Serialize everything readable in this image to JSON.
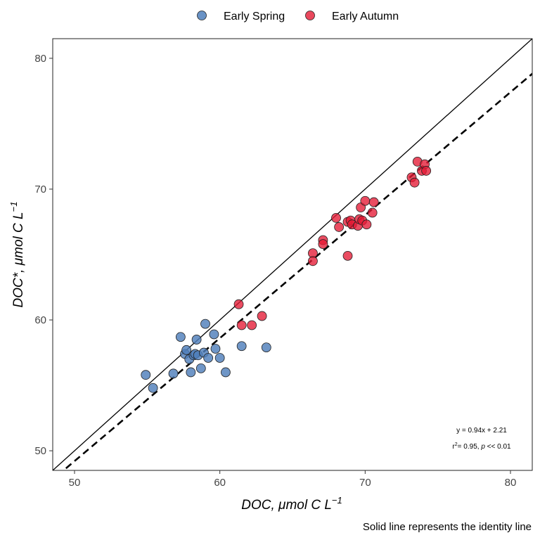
{
  "chart_data": {
    "type": "scatter",
    "xlabel_main": "DOC, μmol C L",
    "xlabel_sup": "−1",
    "ylabel_main": "DOC*, μmol C L",
    "ylabel_sup": "−1",
    "xlim": [
      48.5,
      81.5
    ],
    "ylim": [
      48.5,
      81.5
    ],
    "x_ticks": [
      50,
      60,
      70,
      80
    ],
    "y_ticks": [
      50,
      60,
      70,
      80
    ],
    "x_tick_labels": [
      "50",
      "60",
      "70",
      "80"
    ],
    "y_tick_labels": [
      "50",
      "60",
      "70",
      "80"
    ],
    "grid": false,
    "legend_position": "top",
    "series": [
      {
        "name": "Early Spring",
        "color": "#4f7fbb",
        "points": [
          [
            54.9,
            55.8
          ],
          [
            55.4,
            54.8
          ],
          [
            56.8,
            55.9
          ],
          [
            57.3,
            58.7
          ],
          [
            57.6,
            57.4
          ],
          [
            57.7,
            57.7
          ],
          [
            57.9,
            57.0
          ],
          [
            58.0,
            56.0
          ],
          [
            58.2,
            57.3
          ],
          [
            58.3,
            57.4
          ],
          [
            58.4,
            58.5
          ],
          [
            58.5,
            57.3
          ],
          [
            58.7,
            56.3
          ],
          [
            58.9,
            57.5
          ],
          [
            59.0,
            59.7
          ],
          [
            59.2,
            57.1
          ],
          [
            59.6,
            58.9
          ],
          [
            59.7,
            57.8
          ],
          [
            60.0,
            57.1
          ],
          [
            60.4,
            56.0
          ],
          [
            61.5,
            58.0
          ],
          [
            63.2,
            57.9
          ]
        ]
      },
      {
        "name": "Early Autumn",
        "color": "#e41a34",
        "points": [
          [
            61.3,
            61.2
          ],
          [
            61.5,
            59.6
          ],
          [
            62.2,
            59.6
          ],
          [
            62.9,
            60.3
          ],
          [
            66.4,
            65.1
          ],
          [
            66.4,
            64.5
          ],
          [
            67.1,
            66.1
          ],
          [
            67.1,
            65.8
          ],
          [
            68.0,
            67.8
          ],
          [
            68.2,
            67.1
          ],
          [
            68.8,
            67.5
          ],
          [
            68.8,
            64.9
          ],
          [
            69.0,
            67.6
          ],
          [
            69.1,
            67.3
          ],
          [
            69.5,
            67.2
          ],
          [
            69.6,
            67.7
          ],
          [
            69.7,
            68.6
          ],
          [
            69.8,
            67.6
          ],
          [
            70.0,
            69.1
          ],
          [
            70.1,
            67.3
          ],
          [
            70.5,
            68.2
          ],
          [
            70.6,
            69.0
          ],
          [
            73.2,
            70.9
          ],
          [
            73.4,
            70.5
          ],
          [
            73.6,
            72.1
          ],
          [
            73.9,
            71.4
          ],
          [
            74.1,
            71.9
          ],
          [
            74.2,
            71.4
          ]
        ]
      }
    ],
    "identity_line": {
      "slope": 1,
      "intercept": 0,
      "style": "solid"
    },
    "regression_line": {
      "slope": 0.94,
      "intercept": 2.21,
      "style": "dashed"
    },
    "annotation": {
      "equation": "y = 0.94x + 2.21",
      "r2_prefix": "r",
      "r2_sup": "2",
      "r2_mid": "= 0.95, ",
      "p_symbol": "p",
      "p_rest": " << 0.01"
    },
    "caption": "Solid line represents the identity line"
  }
}
